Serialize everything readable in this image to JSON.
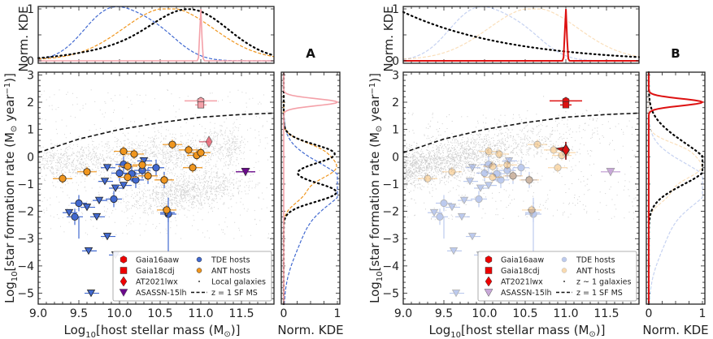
{
  "chart_data": [
    {
      "panel": "A",
      "type": "scatter",
      "xlabel": "Log10[host stellar mass (M⊙)]",
      "ylabel": "Log10[star formation rate (M⊙ year^-1)]",
      "xlim": [
        9.0,
        11.9
      ],
      "ylim": [
        -5.4,
        3.1
      ],
      "xticks": [
        "9.0",
        "9.5",
        "10.0",
        "10.5",
        "11.0",
        "11.5"
      ],
      "yticks": [
        "3",
        "2",
        "1",
        "0",
        "-1",
        "-2",
        "-3",
        "-4",
        "-5"
      ],
      "background": "Local galaxies",
      "background_density": "two clouds: star-forming sequence near SFR~0 and passive cloud near SFR~-1.3 at mass ~10.8",
      "sf_ms_line": {
        "label": "z = 1 SF MS",
        "x": [
          9.0,
          9.5,
          10.0,
          10.5,
          11.0,
          11.5,
          11.9
        ],
        "y": [
          0.15,
          0.65,
          1.0,
          1.25,
          1.45,
          1.55,
          1.6
        ]
      },
      "tde_hosts": {
        "label": "TDE hosts",
        "color": "#4169d0",
        "points": [
          [
            9.45,
            -2.2
          ],
          [
            9.5,
            -1.7
          ],
          [
            9.93,
            -1.55
          ],
          [
            10.05,
            -0.28
          ],
          [
            10.15,
            -0.62
          ],
          [
            10.28,
            -0.5
          ],
          [
            10.35,
            -0.7
          ],
          [
            10.45,
            -0.4
          ],
          [
            10.55,
            -0.85
          ],
          [
            10.6,
            -2.1
          ],
          [
            10.2,
            -0.85
          ],
          [
            10.0,
            -0.6
          ]
        ],
        "upper_limits": [
          [
            9.38,
            -2.05
          ],
          [
            9.6,
            -1.85
          ],
          [
            9.72,
            -2.2
          ],
          [
            9.75,
            -1.6
          ],
          [
            9.85,
            -2.92
          ],
          [
            9.95,
            -3.6
          ],
          [
            9.62,
            -3.45
          ],
          [
            9.95,
            -1.15
          ],
          [
            10.05,
            -1.05
          ],
          [
            9.82,
            -0.9
          ],
          [
            10.3,
            -0.15
          ],
          [
            9.85,
            -0.4
          ],
          [
            10.58,
            -2.05
          ],
          [
            9.65,
            -5.0
          ]
        ]
      },
      "ant_hosts": {
        "label": "ANT hosts",
        "color": "#f0961e",
        "points": [
          [
            9.3,
            -0.8
          ],
          [
            9.6,
            -0.55
          ],
          [
            10.05,
            0.2
          ],
          [
            10.1,
            -0.35
          ],
          [
            10.1,
            -0.75
          ],
          [
            10.18,
            0.1
          ],
          [
            10.28,
            -0.3
          ],
          [
            10.35,
            -0.7
          ],
          [
            10.55,
            -0.85
          ],
          [
            10.65,
            0.45
          ],
          [
            10.85,
            0.25
          ],
          [
            10.95,
            0.05
          ],
          [
            11.0,
            0.15
          ],
          [
            10.9,
            -0.4
          ],
          [
            10.58,
            -1.95
          ]
        ]
      },
      "special_sources": [
        {
          "name": "Gaia16aaw",
          "marker": "hexagon",
          "x": 11.0,
          "y": 2.05
        },
        {
          "name": "Gaia18cdj",
          "marker": "square",
          "x": 11.0,
          "y": 1.9
        },
        {
          "name": "AT2021lwx",
          "marker": "diamond",
          "x": 11.1,
          "y": 0.55
        },
        {
          "name": "ASASSN-15lh",
          "marker": "triangle_down",
          "x": 11.55,
          "y": -0.55
        }
      ],
      "top_kde": {
        "ylabel": "Norm. KDE",
        "yticks": [
          "0",
          "1"
        ],
        "series": [
          {
            "name": "TDE hosts",
            "style": "dashed",
            "color": "#4169d0",
            "peak_x": 9.9
          },
          {
            "name": "ANT hosts",
            "style": "dashed",
            "color": "#f0961e",
            "peak_x": 10.6
          },
          {
            "name": "Local galaxies",
            "style": "dotted",
            "color": "#000000",
            "peak_x": 10.85
          },
          {
            "name": "Gaia sources",
            "style": "solid",
            "color": "#f4a0a8",
            "peak_x": 11.0
          }
        ]
      },
      "right_kde": {
        "xlabel": "Norm. KDE",
        "xticks": [
          "0",
          "1"
        ],
        "series": [
          {
            "name": "TDE hosts",
            "peak_y": -0.8
          },
          {
            "name": "ANT hosts",
            "peak_y": -0.3
          },
          {
            "name": "Local galaxies",
            "peak_y": [
              -0.2,
              -1.1
            ]
          },
          {
            "name": "Gaia sources",
            "peak_y": 2.0
          }
        ]
      },
      "legend": [
        "Gaia16aaw",
        "Gaia18cdj",
        "AT2021lwx",
        "ASASSN-15lh",
        "TDE hosts",
        "ANT hosts",
        "Local galaxies",
        "z = 1 SF MS"
      ],
      "legend_position": "lower-right"
    },
    {
      "panel": "B",
      "type": "scatter",
      "xlabel": "Log10[host stellar mass (M⊙)]",
      "ylabel": "Log10[star formation rate (M⊙ year^-1)]",
      "xlim": [
        9.0,
        11.9
      ],
      "ylim": [
        -5.4,
        3.1
      ],
      "xticks": [
        "9.0",
        "9.5",
        "10.0",
        "10.5",
        "11.0",
        "11.5"
      ],
      "yticks": [
        "3",
        "2",
        "1",
        "0",
        "-1",
        "-2",
        "-3",
        "-4",
        "-5"
      ],
      "background": "z ~ 1 galaxies",
      "background_density": "star-forming sequence from (9.0,-0.4) rising to (11.5,1.0)",
      "sf_ms_line": {
        "label": "z = 1 SF MS",
        "x": [
          9.0,
          9.5,
          10.0,
          10.5,
          11.0,
          11.5,
          11.9
        ],
        "y": [
          0.15,
          0.65,
          1.0,
          1.25,
          1.45,
          1.55,
          1.6
        ]
      },
      "highlighted": [
        "Gaia16aaw",
        "Gaia18cdj",
        "AT2021lwx"
      ],
      "faded": [
        "TDE hosts",
        "ANT hosts",
        "ASASSN-15lh"
      ],
      "top_kde": {
        "ylabel": "Norm. KDE",
        "yticks": [
          "0",
          "1"
        ],
        "series": [
          {
            "name": "z ~ 1 galaxies",
            "style": "dotted",
            "peak_x": 9.0
          },
          {
            "name": "Gaia sources",
            "style": "solid",
            "color": "#dd1111",
            "peak_x": 11.0
          }
        ]
      },
      "right_kde": {
        "xlabel": "Norm. KDE",
        "xticks": [
          "0",
          "1"
        ],
        "series": [
          {
            "name": "z ~ 1 galaxies",
            "peak_y": -0.5
          },
          {
            "name": "Gaia sources",
            "peak_y": 2.0
          }
        ]
      },
      "legend": [
        "Gaia16aaw",
        "Gaia18cdj",
        "AT2021lwx",
        "ASASSN-15lh",
        "TDE hosts",
        "ANT hosts",
        "z ~ 1 galaxies",
        "z = 1 SF MS"
      ],
      "legend_position": "lower-right"
    }
  ],
  "labels": {
    "panel_a": "A",
    "panel_b": "B",
    "xlabel_main": "host stellar mass",
    "xlabel_kde": "Norm. KDE",
    "ylabel_top": "Norm. KDE",
    "ylabel_main": "star formation rate",
    "legend_a": [
      "Gaia16aaw",
      "Gaia18cdj",
      "AT2021lwx",
      "ASASSN-15lh",
      "TDE hosts",
      "ANT hosts",
      "Local galaxies",
      "z = 1 SF MS"
    ],
    "legend_b": [
      "Gaia16aaw",
      "Gaia18cdj",
      "AT2021lwx",
      "ASASSN-15lh",
      "TDE hosts",
      "ANT hosts",
      "z ~ 1 galaxies",
      "z = 1 SF MS"
    ]
  },
  "colors": {
    "tde": "#4169d0",
    "ant": "#f0961e",
    "gaia_a": "#f4a0a8",
    "gaia_b": "#dd1111",
    "asassn": "#6a0a8a"
  }
}
